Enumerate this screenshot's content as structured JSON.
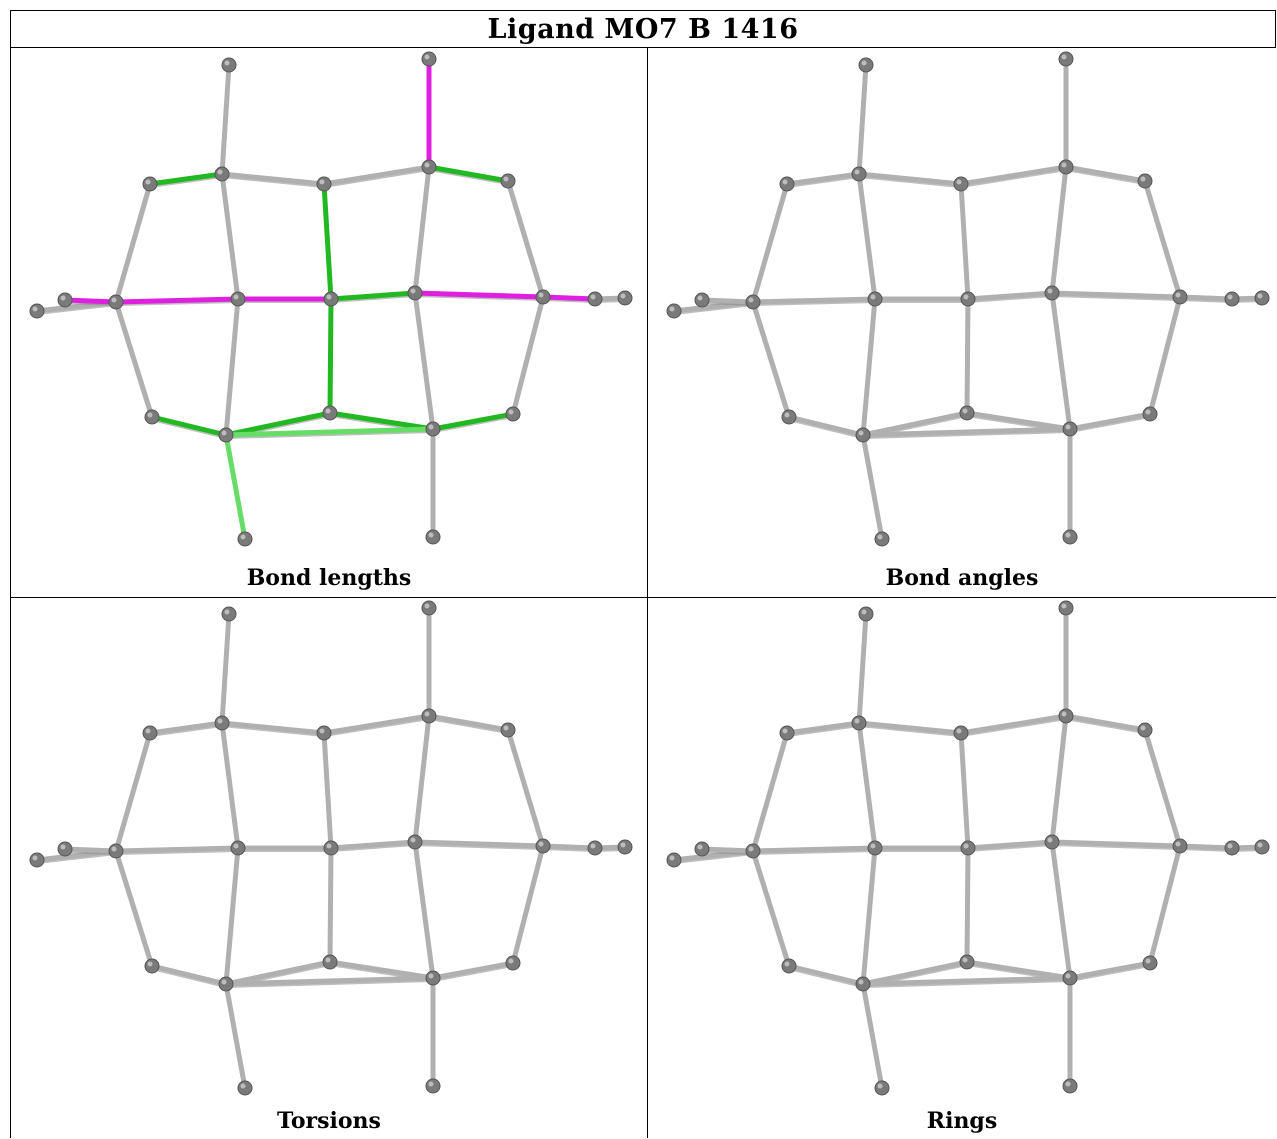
{
  "title": "Ligand MO7 B 1416",
  "panels": [
    {
      "caption": "Bond lengths",
      "highlight": "lengths"
    },
    {
      "caption": "Bond angles",
      "highlight": "none"
    },
    {
      "caption": "Torsions",
      "highlight": "none"
    },
    {
      "caption": "Rings",
      "highlight": "none"
    }
  ],
  "colors": {
    "atom": "#7a7a7a",
    "bond": "#b0b0b0",
    "bond_dark": "#8a8a8a",
    "green": "#22b822",
    "light_green": "#66dd66",
    "magenta": "#e020e0"
  }
}
